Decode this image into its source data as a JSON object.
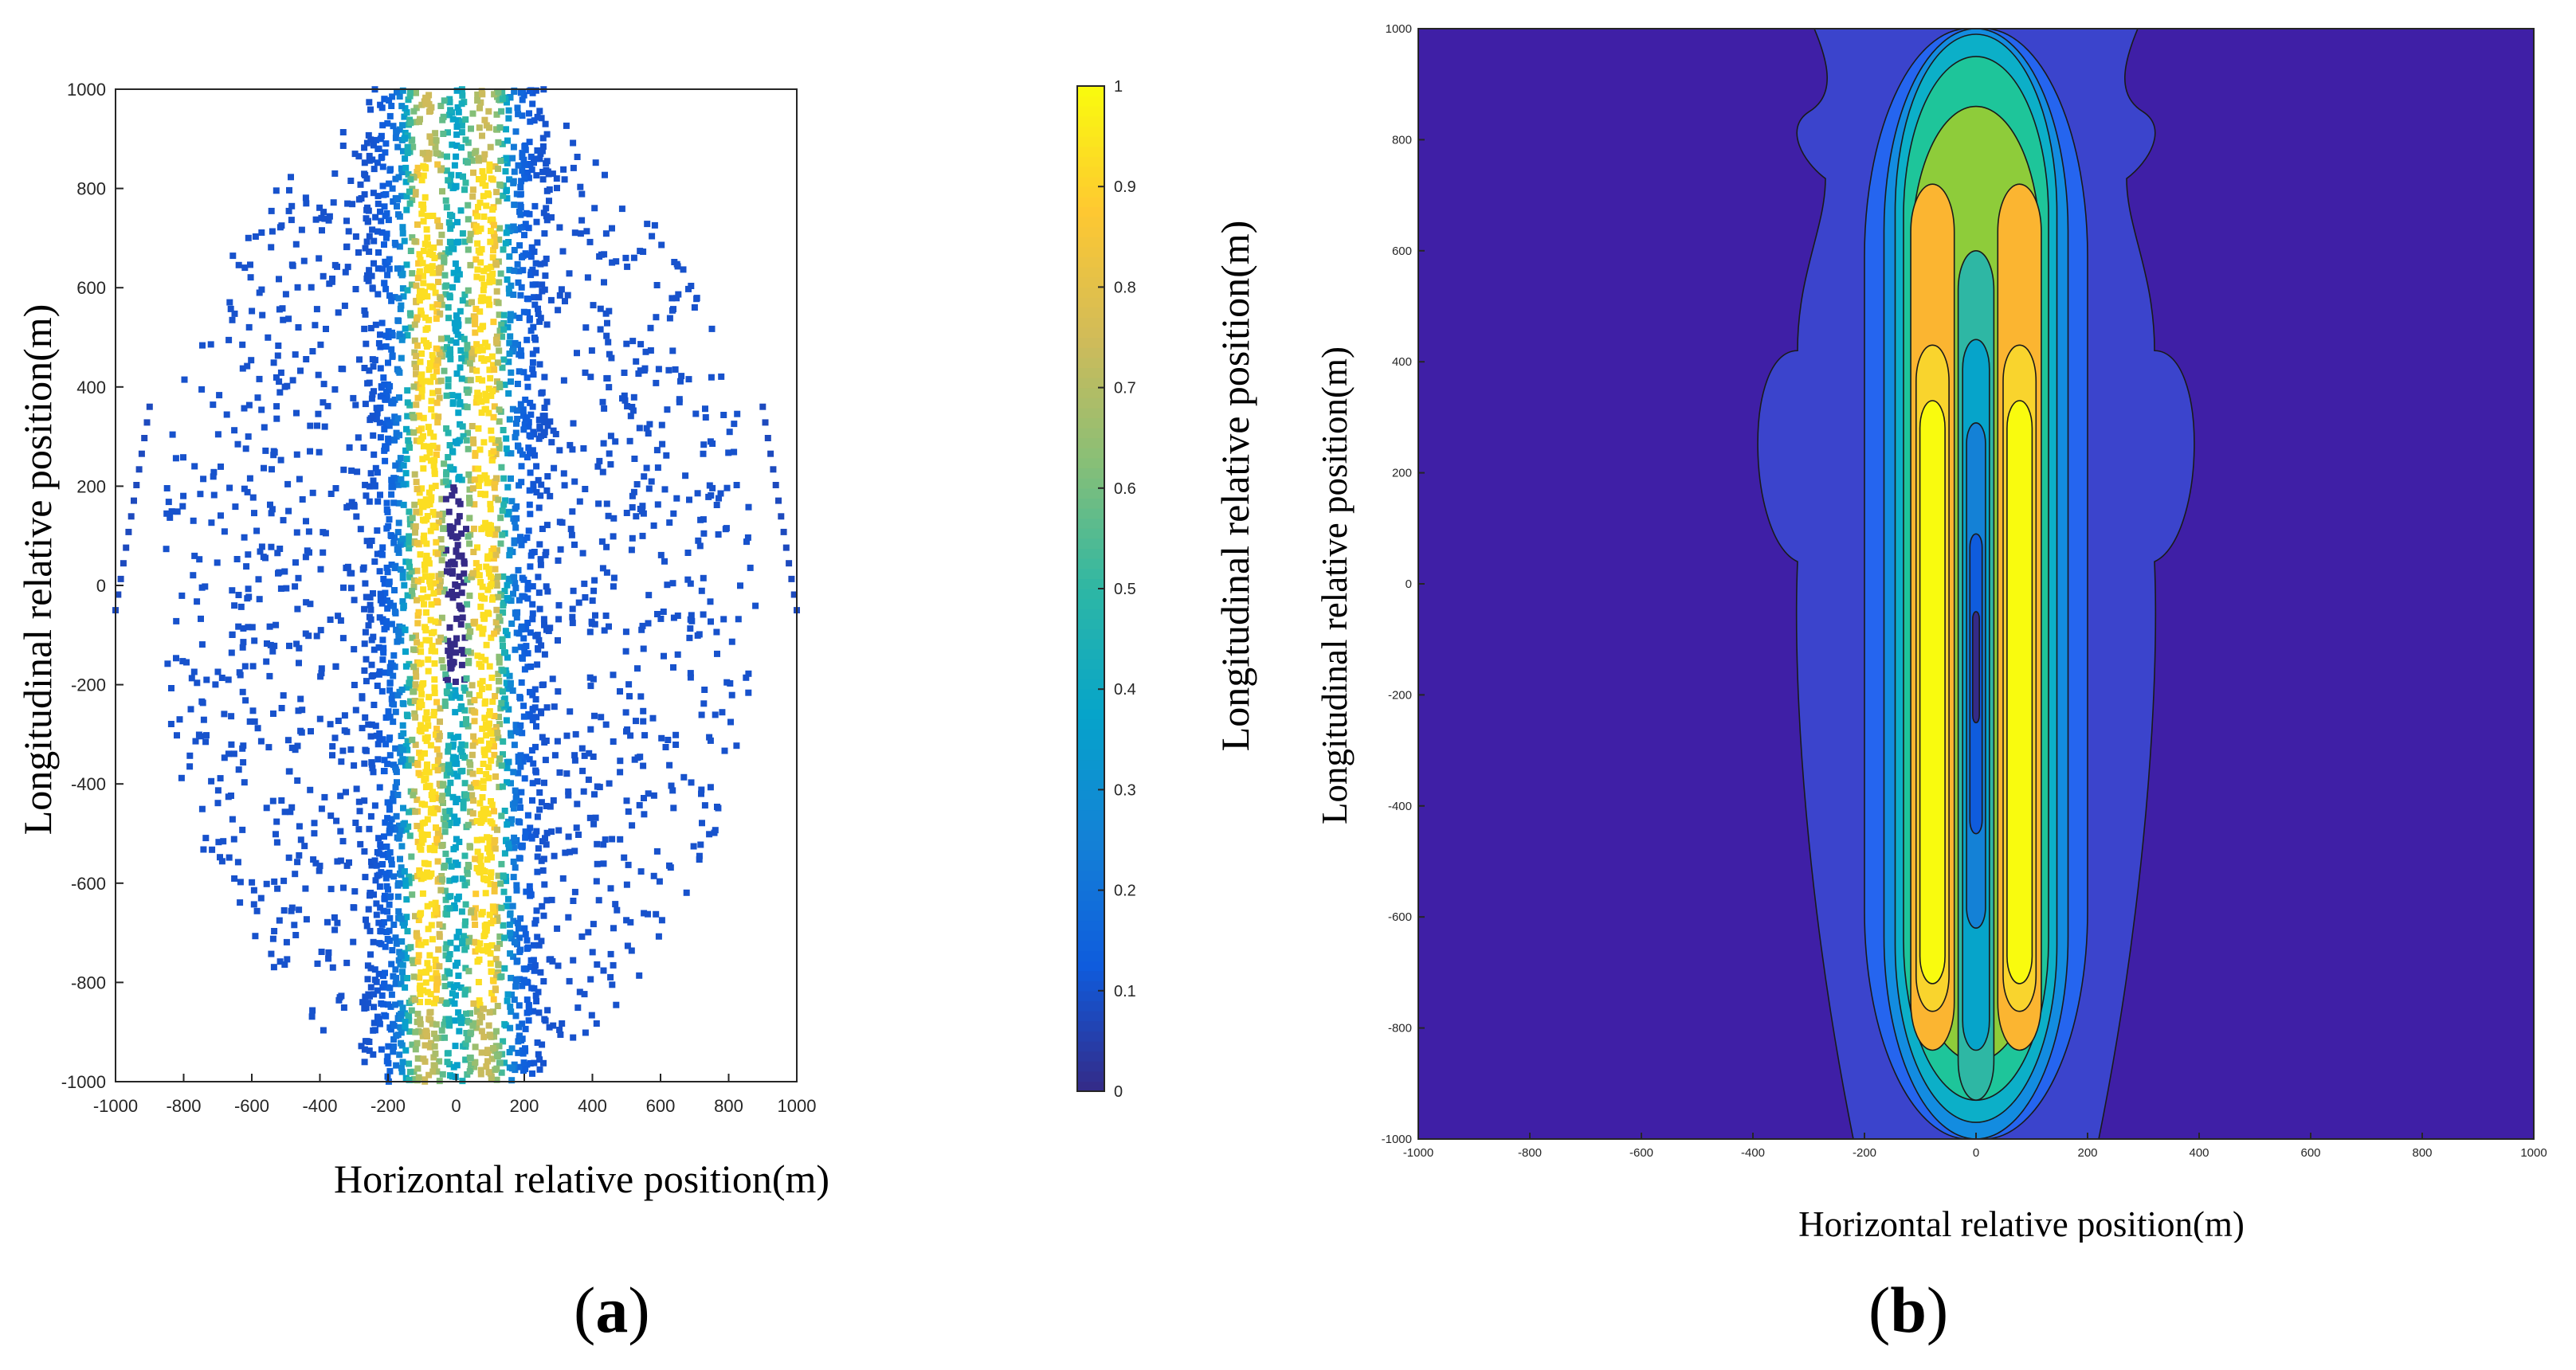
{
  "figure": {
    "panel_a_label": "a",
    "panel_b_label": "b"
  },
  "chart_data": [
    {
      "panel": "a",
      "type": "scatter",
      "xlabel": "Horizontal relative position(m)",
      "ylabel": "Longitudinal relative position(m)",
      "xlim": [
        -1000,
        1000
      ],
      "ylim": [
        -1000,
        1000
      ],
      "xticks": [
        -1000,
        -800,
        -600,
        -400,
        -200,
        0,
        200,
        400,
        600,
        800,
        1000
      ],
      "yticks": [
        -1000,
        -800,
        -600,
        -400,
        -200,
        0,
        200,
        400,
        600,
        800,
        1000
      ],
      "grid": false,
      "colormap": "parula",
      "colorbar": {
        "range": [
          0,
          1
        ],
        "ticks": [
          0,
          0.1,
          0.2,
          0.3,
          0.4,
          0.5,
          0.6,
          0.7,
          0.8,
          0.9,
          1
        ],
        "tick_labels": [
          "0",
          "0.1",
          "0.2",
          "0.3",
          "0.4",
          "0.5",
          "0.6",
          "0.7",
          "0.8",
          "0.9",
          "1"
        ]
      },
      "points": {
        "region": "ellipse centered at (0, 0), radius about 1000 m",
        "value_bands": [
          {
            "horizontal_extent": "|x| > 250",
            "value": 0.1
          },
          {
            "horizontal_extent": "|x| 160–250",
            "value": 0.35
          },
          {
            "horizontal_extent": "|x| 30–160",
            "value": 0.85,
            "longitudinal_extent": [
              -800,
              800
            ]
          },
          {
            "horizontal_extent": "|x| < 30",
            "value": 0.0,
            "note": "sparse core"
          }
        ],
        "sparse_outer_arcs": [
          {
            "x": [
              -1000,
              -900
            ],
            "y": [
              -50,
              360
            ]
          },
          {
            "x": [
              900,
              1000
            ],
            "y": [
              -50,
              360
            ]
          }
        ]
      }
    },
    {
      "panel": "b",
      "type": "heatmap",
      "subtype": "filled contour",
      "xlabel": "Horizontal relative position(m)",
      "ylabel": "Longitudinal relative position(m)",
      "xlim": [
        -1000,
        1000
      ],
      "ylim": [
        -1000,
        1000
      ],
      "xticks": [
        -1000,
        -800,
        -600,
        -400,
        -200,
        0,
        200,
        400,
        600,
        800,
        1000
      ],
      "yticks": [
        -1000,
        -800,
        -600,
        -400,
        -200,
        0,
        200,
        400,
        600,
        800,
        1000
      ],
      "grid": false,
      "colormap": "parula",
      "contour_levels": [
        {
          "level": 1,
          "x_range": [
            -410,
            410
          ],
          "y_range": [
            -1000,
            1000
          ],
          "color": "#3b44cc"
        },
        {
          "level": 2,
          "x_range": [
            -200,
            200
          ],
          "y_range": [
            -1000,
            1000
          ],
          "color": "#2565ef"
        },
        {
          "level": 3,
          "x_range": [
            -165,
            165
          ],
          "y_range": [
            -1000,
            1000
          ],
          "color": "#138ce0"
        },
        {
          "level": 4,
          "x_range": [
            -145,
            145
          ],
          "y_range": [
            -970,
            990
          ],
          "color": "#0cafc8"
        },
        {
          "level": 5,
          "x_range": [
            -130,
            130
          ],
          "y_range": [
            -930,
            950
          ],
          "color": "#1ec59a"
        },
        {
          "level": 6,
          "x_range": [
            -115,
            115
          ],
          "y_range": [
            -860,
            860
          ],
          "color": "#8ecc3a"
        },
        {
          "level": 7,
          "x_range": [
            -110,
            110
          ],
          "y_range": [
            -840,
            720
          ],
          "color": "#fbb531",
          "note": "two lobes near x = ±75"
        },
        {
          "level": 8,
          "x_range": [
            -95,
            95
          ],
          "y_range": [
            -770,
            430
          ],
          "color": "#f9d42d",
          "note": "two lobes near x = ±75"
        },
        {
          "level": 9,
          "x_range": [
            -85,
            85
          ],
          "y_range": [
            -720,
            330
          ],
          "color": "#f9fb0e",
          "note": "two lobes near x = ±75"
        }
      ],
      "central_trough": {
        "x": 0,
        "y_range": [
          -250,
          600
        ],
        "lowest_value_region_y": [
          -250,
          -50
        ]
      }
    }
  ],
  "colors": {
    "parula": [
      "#352a87",
      "#0f5cdd",
      "#1481d6",
      "#06a4ca",
      "#2eb7a4",
      "#87bf77",
      "#d1bb59",
      "#fec832",
      "#f9fb0e"
    ],
    "b_background": "#3f1fa6"
  }
}
